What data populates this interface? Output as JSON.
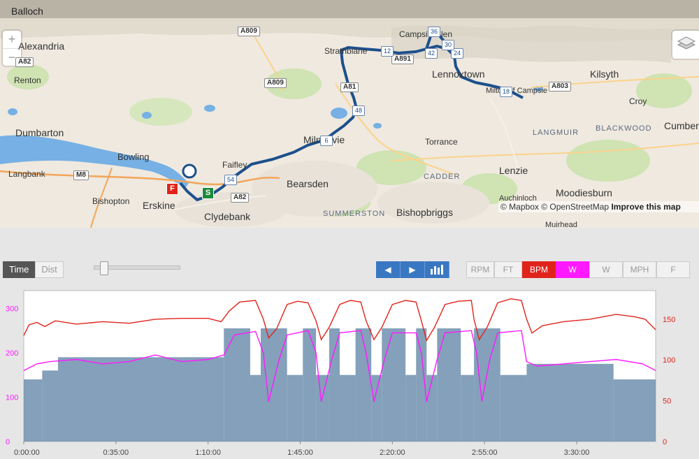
{
  "map": {
    "top_label": "Balloch",
    "zoom_in": "+",
    "zoom_out": "−",
    "attribution": {
      "mapbox": "© Mapbox",
      "osm": "© OpenStreetMap",
      "improve": "Improve this map"
    },
    "places": [
      "Alexandria",
      "Renton",
      "Dumbarton",
      "Bowling",
      "Langbank",
      "Bishopton",
      "Erskine",
      "Clydebank",
      "Faifley",
      "Bearsden",
      "Milngavie",
      "Strathblane",
      "Campsie Glen",
      "Lennoxtown",
      "Milton of Campsie",
      "Kilsyth",
      "Croy",
      "Torrance",
      "Lenzie",
      "Auchinloch",
      "Moodiesburn",
      "Muirhead",
      "Bishopbriggs",
      "Cumbernauld"
    ],
    "districts": [
      "LANGMUIR",
      "BLACKWOOD",
      "CADDER",
      "SUMMERSTON"
    ],
    "roads": [
      "A82",
      "A809",
      "A809",
      "A81",
      "A891",
      "A803",
      "M8",
      "A82"
    ],
    "km_markers": [
      "6",
      "12",
      "18",
      "24",
      "30",
      "36",
      "42",
      "48",
      "54"
    ],
    "flags": {
      "start": "S",
      "finish": "F"
    }
  },
  "controls": {
    "tabs": [
      {
        "label": "Time",
        "active": true
      },
      {
        "label": "Dist",
        "active": false
      }
    ],
    "nav": {
      "prev": "◀",
      "next": "▶",
      "bars": "bars-icon"
    },
    "metrics": [
      {
        "label": "RPM",
        "active": false,
        "color": "#999999"
      },
      {
        "label": "FT",
        "active": false,
        "color": "#999999"
      },
      {
        "label": "BPM",
        "active": true,
        "color": "#e0241b"
      },
      {
        "label": "W",
        "active": true,
        "color": "#ff19ff"
      },
      {
        "label": "W",
        "active": false,
        "color": "#999999"
      },
      {
        "label": "MPH",
        "active": false,
        "color": "#999999"
      },
      {
        "label": "F",
        "active": false,
        "color": "#999999"
      }
    ]
  },
  "chart_data": {
    "type": "line",
    "x_ticks": [
      "0:00:00",
      "0:35:00",
      "1:10:00",
      "1:45:00",
      "2:20:00",
      "2:55:00",
      "3:30:00"
    ],
    "x_range_minutes": [
      0,
      240
    ],
    "y_left": {
      "ticks": [
        "0",
        "100",
        "200",
        "300"
      ],
      "range": [
        0,
        340
      ],
      "color": "#ff19ff"
    },
    "y_right": {
      "ticks": [
        "0",
        "50",
        "100",
        "150"
      ],
      "range": [
        0,
        185
      ],
      "color": "#e0241b"
    },
    "series": [
      {
        "name": "BPM",
        "color": "#e0241b",
        "axis": "right",
        "points": [
          [
            0,
            130
          ],
          [
            2,
            143
          ],
          [
            5,
            146
          ],
          [
            8,
            141
          ],
          [
            12,
            148
          ],
          [
            20,
            144
          ],
          [
            30,
            147
          ],
          [
            40,
            145
          ],
          [
            50,
            150
          ],
          [
            60,
            151
          ],
          [
            70,
            151
          ],
          [
            75,
            147
          ],
          [
            78,
            160
          ],
          [
            82,
            171
          ],
          [
            88,
            173
          ],
          [
            91,
            150
          ],
          [
            93,
            127
          ],
          [
            96,
            138
          ],
          [
            100,
            168
          ],
          [
            104,
            172
          ],
          [
            108,
            170
          ],
          [
            111,
            148
          ],
          [
            113,
            125
          ],
          [
            116,
            140
          ],
          [
            120,
            168
          ],
          [
            124,
            173
          ],
          [
            128,
            171
          ],
          [
            130,
            148
          ],
          [
            133,
            125
          ],
          [
            136,
            140
          ],
          [
            140,
            168
          ],
          [
            145,
            173
          ],
          [
            149,
            171
          ],
          [
            151,
            148
          ],
          [
            153,
            124
          ],
          [
            156,
            140
          ],
          [
            160,
            168
          ],
          [
            165,
            172
          ],
          [
            170,
            173
          ],
          [
            171,
            150
          ],
          [
            173,
            125
          ],
          [
            176,
            140
          ],
          [
            180,
            170
          ],
          [
            185,
            175
          ],
          [
            189,
            173
          ],
          [
            191,
            150
          ],
          [
            193,
            133
          ],
          [
            197,
            142
          ],
          [
            205,
            147
          ],
          [
            215,
            150
          ],
          [
            225,
            156
          ],
          [
            232,
            153
          ],
          [
            236,
            150
          ],
          [
            240,
            137
          ]
        ]
      },
      {
        "name": "W",
        "color": "#ff19ff",
        "axis": "left",
        "points": [
          [
            0,
            160
          ],
          [
            5,
            175
          ],
          [
            10,
            180
          ],
          [
            20,
            185
          ],
          [
            30,
            175
          ],
          [
            40,
            180
          ],
          [
            50,
            195
          ],
          [
            60,
            180
          ],
          [
            70,
            185
          ],
          [
            76,
            195
          ],
          [
            80,
            240
          ],
          [
            88,
            248
          ],
          [
            91,
            200
          ],
          [
            93,
            90
          ],
          [
            97,
            185
          ],
          [
            100,
            240
          ],
          [
            108,
            250
          ],
          [
            111,
            200
          ],
          [
            113,
            90
          ],
          [
            117,
            185
          ],
          [
            120,
            245
          ],
          [
            128,
            250
          ],
          [
            130,
            200
          ],
          [
            133,
            90
          ],
          [
            137,
            185
          ],
          [
            140,
            245
          ],
          [
            149,
            245
          ],
          [
            151,
            200
          ],
          [
            153,
            90
          ],
          [
            157,
            185
          ],
          [
            160,
            245
          ],
          [
            170,
            250
          ],
          [
            172,
            200
          ],
          [
            174,
            90
          ],
          [
            177,
            185
          ],
          [
            180,
            245
          ],
          [
            189,
            250
          ],
          [
            191,
            180
          ],
          [
            195,
            170
          ],
          [
            205,
            175
          ],
          [
            215,
            180
          ],
          [
            225,
            185
          ],
          [
            235,
            175
          ],
          [
            240,
            160
          ]
        ]
      }
    ],
    "bars": {
      "name": "Target W",
      "color": "#6e8fae",
      "segments": [
        [
          0,
          7,
          140
        ],
        [
          7,
          13,
          160
        ],
        [
          13,
          76,
          190
        ],
        [
          76,
          86,
          255
        ],
        [
          86,
          90,
          150
        ],
        [
          90,
          100,
          255
        ],
        [
          100,
          106,
          150
        ],
        [
          106,
          111,
          255
        ],
        [
          111,
          116,
          150
        ],
        [
          116,
          120,
          255
        ],
        [
          120,
          126,
          150
        ],
        [
          126,
          132,
          255
        ],
        [
          132,
          136,
          150
        ],
        [
          136,
          145,
          255
        ],
        [
          145,
          149,
          150
        ],
        [
          149,
          153,
          255
        ],
        [
          153,
          157,
          150
        ],
        [
          157,
          166,
          255
        ],
        [
          166,
          171,
          150
        ],
        [
          171,
          181,
          255
        ],
        [
          181,
          191,
          150
        ],
        [
          191,
          224,
          175
        ],
        [
          224,
          240,
          140
        ]
      ]
    }
  }
}
